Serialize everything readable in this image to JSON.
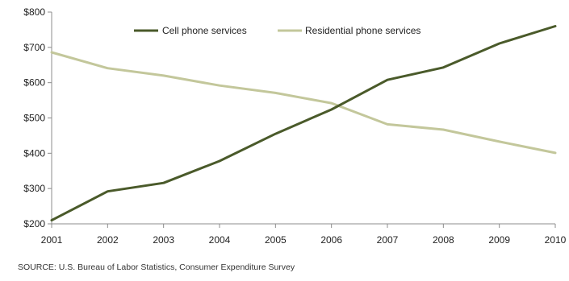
{
  "chart_data": {
    "type": "line",
    "x": [
      "2001",
      "2002",
      "2003",
      "2004",
      "2005",
      "2006",
      "2007",
      "2008",
      "2009",
      "2010"
    ],
    "series": [
      {
        "name": "Cell phone services",
        "color": "#4a5a2a",
        "values": [
          210,
          292,
          316,
          378,
          455,
          524,
          608,
          643,
          711,
          760
        ]
      },
      {
        "name": "Residential phone services",
        "color": "#c3c79b",
        "values": [
          686,
          641,
          620,
          592,
          571,
          542,
          482,
          467,
          433,
          401
        ]
      }
    ],
    "ylim": [
      200,
      800
    ],
    "yticks": [
      200,
      300,
      400,
      500,
      600,
      700,
      800
    ],
    "ytick_prefix": "$",
    "legend_position": "top-center",
    "grid": false
  },
  "source": "SOURCE: U.S. Bureau of Labor Statistics,  Consumer Expenditure Survey"
}
